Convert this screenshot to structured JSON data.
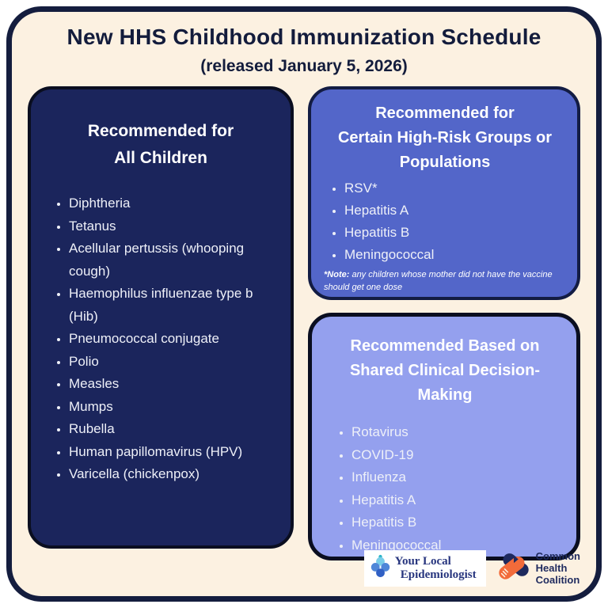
{
  "header": {
    "title": "New HHS Childhood Immunization Schedule",
    "subtitle": "(released January 5, 2026)"
  },
  "panels": {
    "all_children": {
      "title": "Recommended for\nAll Children",
      "items": [
        "Diphtheria",
        "Tetanus",
        "Acellular pertussis (whooping cough)",
        "Haemophilus influenzae type b (Hib)",
        "Pneumococcal conjugate",
        "Polio",
        "Measles",
        "Mumps",
        "Rubella",
        "Human papillomavirus (HPV)",
        "Varicella (chickenpox)"
      ]
    },
    "high_risk": {
      "title": "Recommended for\nCertain High-Risk Groups or\nPopulations",
      "items": [
        "RSV*",
        "Hepatitis A",
        "Hepatitis B",
        "Meningococcal"
      ],
      "note_label": "*Note:",
      "note_text": " any children whose mother did not have the vaccine should get one dose"
    },
    "shared_decision": {
      "title": "Recommended Based on\nShared Clinical Decision-Making",
      "items": [
        "Rotavirus",
        "COVID-19",
        "Influenza",
        "Hepatitis A",
        "Hepatitis B",
        "Meningococcal"
      ]
    }
  },
  "footer": {
    "yle_logo": {
      "line1": "Your Local",
      "line2": "Epidemiologist",
      "icon": "flower-icon"
    },
    "chc_logo": {
      "text": "Common\nHealth\nCoalition",
      "icon": "handshake-icon"
    }
  },
  "colors": {
    "page_background": "#fcf1e1",
    "page_border": "#141d3e",
    "panel_navy": "#1b255c",
    "panel_blue": "#5366c9",
    "panel_light": "#94a0ee",
    "title_text": "#131c3c",
    "panel_text": "#ffffff",
    "logo_orange": "#f26b3a",
    "logo_navy": "#1e2a5e",
    "yle_text_blue": "#27357e",
    "flower_light_blue": "#79cde8",
    "flower_mid_blue": "#4f86d8",
    "flower_dark_blue": "#3160c4",
    "flower_teal": "#2ab5c8"
  }
}
